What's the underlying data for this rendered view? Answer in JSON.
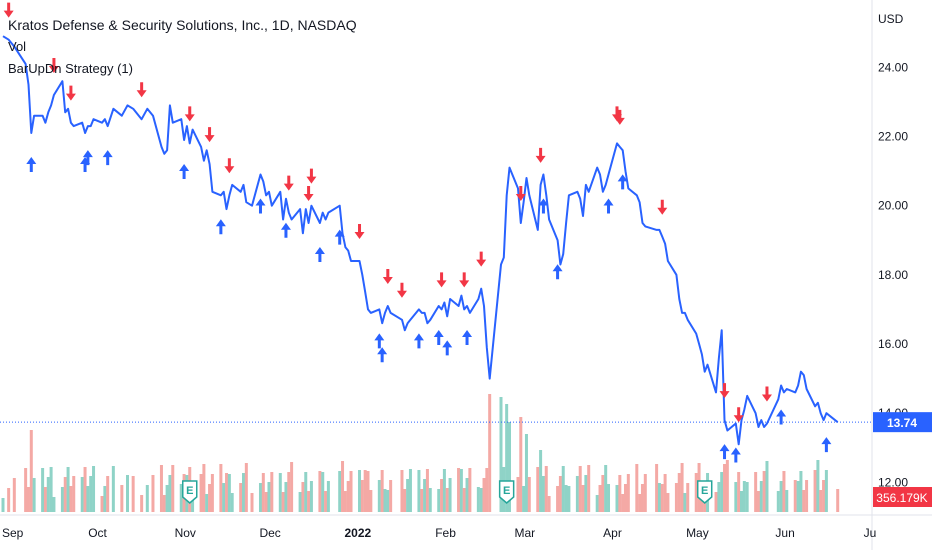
{
  "chart_data": {
    "type": "line",
    "title": "Kratos Defense & Security Solutions, Inc., 1D, NASDAQ",
    "indicators": [
      "Vol",
      "BarUpDn Strategy (1)"
    ],
    "currency_label": "USD",
    "x_ticks": [
      "Sep",
      "Oct",
      "Nov",
      "Dec",
      "2022",
      "Feb",
      "Mar",
      "Apr",
      "May",
      "Jun",
      "Ju"
    ],
    "y_ticks": [
      "24.00",
      "22.00",
      "20.00",
      "18.00",
      "16.00",
      "14.00",
      "12.00"
    ],
    "ylim": [
      11.2,
      25.6
    ],
    "last_price": 13.74,
    "last_price_label": "13.74",
    "volume_label": "356.179K",
    "earnings_marker_label": "E",
    "earnings_dates": [
      "2021-11-04",
      "2022-02-24",
      "2022-05-05"
    ],
    "price_series": {
      "color": "#2962ff",
      "points": [
        [
          "2021-08-30",
          24.9
        ],
        [
          "2021-09-01",
          24.8
        ],
        [
          "2021-09-03",
          24.6
        ],
        [
          "2021-09-07",
          24.1
        ],
        [
          "2021-09-08",
          23.5
        ],
        [
          "2021-09-09",
          22.1
        ],
        [
          "2021-09-10",
          22.6
        ],
        [
          "2021-09-13",
          22.6
        ],
        [
          "2021-09-14",
          22.4
        ],
        [
          "2021-09-15",
          22.7
        ],
        [
          "2021-09-16",
          22.9
        ],
        [
          "2021-09-17",
          23.2
        ],
        [
          "2021-09-20",
          23.6
        ],
        [
          "2021-09-21",
          22.7
        ],
        [
          "2021-09-22",
          22.8
        ],
        [
          "2021-09-23",
          22.4
        ],
        [
          "2021-09-24",
          22.3
        ],
        [
          "2021-09-27",
          22.4
        ],
        [
          "2021-09-28",
          22.1
        ],
        [
          "2021-09-29",
          22.3
        ],
        [
          "2021-09-30",
          22.3
        ],
        [
          "2021-10-01",
          22.5
        ],
        [
          "2021-10-04",
          22.4
        ],
        [
          "2021-10-05",
          22.5
        ],
        [
          "2021-10-06",
          22.3
        ],
        [
          "2021-10-08",
          22.8
        ],
        [
          "2021-10-11",
          22.6
        ],
        [
          "2021-10-13",
          22.9
        ],
        [
          "2021-10-15",
          22.8
        ],
        [
          "2021-10-18",
          22.5
        ],
        [
          "2021-10-20",
          22.8
        ],
        [
          "2021-10-22",
          22.6
        ],
        [
          "2021-10-25",
          21.7
        ],
        [
          "2021-10-26",
          21.5
        ],
        [
          "2021-10-27",
          21.6
        ],
        [
          "2021-10-28",
          22.9
        ],
        [
          "2021-10-29",
          22.4
        ],
        [
          "2021-11-01",
          22.5
        ],
        [
          "2021-11-02",
          21.9
        ],
        [
          "2021-11-03",
          22.3
        ],
        [
          "2021-11-04",
          21.8
        ],
        [
          "2021-11-05",
          22.2
        ],
        [
          "2021-11-08",
          21.7
        ],
        [
          "2021-11-09",
          21.3
        ],
        [
          "2021-11-10",
          21.6
        ],
        [
          "2021-11-11",
          21.2
        ],
        [
          "2021-11-12",
          20.4
        ],
        [
          "2021-11-15",
          20.3
        ],
        [
          "2021-11-16",
          20.4
        ],
        [
          "2021-11-17",
          19.9
        ],
        [
          "2021-11-18",
          20.3
        ],
        [
          "2021-11-19",
          20.6
        ],
        [
          "2021-11-22",
          20.4
        ],
        [
          "2021-11-23",
          20.6
        ],
        [
          "2021-11-24",
          20.1
        ],
        [
          "2021-11-26",
          20.0
        ],
        [
          "2021-11-29",
          20.9
        ],
        [
          "2021-11-30",
          20.7
        ],
        [
          "2021-12-01",
          20.3
        ],
        [
          "2021-12-02",
          20.4
        ],
        [
          "2021-12-03",
          20.0
        ],
        [
          "2021-12-06",
          20.4
        ],
        [
          "2021-12-07",
          19.6
        ],
        [
          "2021-12-08",
          20.2
        ],
        [
          "2021-12-09",
          19.8
        ],
        [
          "2021-12-10",
          19.6
        ],
        [
          "2021-12-13",
          19.9
        ],
        [
          "2021-12-14",
          19.2
        ],
        [
          "2021-12-15",
          19.9
        ],
        [
          "2021-12-16",
          19.5
        ],
        [
          "2021-12-17",
          20.0
        ],
        [
          "2021-12-20",
          19.5
        ],
        [
          "2021-12-21",
          19.8
        ],
        [
          "2021-12-22",
          19.6
        ],
        [
          "2021-12-23",
          19.8
        ],
        [
          "2021-12-27",
          20.0
        ],
        [
          "2021-12-28",
          19.2
        ],
        [
          "2021-12-29",
          18.8
        ],
        [
          "2021-12-30",
          18.7
        ],
        [
          "2021-12-31",
          18.4
        ],
        [
          "2022-01-03",
          18.4
        ],
        [
          "2022-01-04",
          18.0
        ],
        [
          "2022-01-05",
          17.5
        ],
        [
          "2022-01-06",
          17.0
        ],
        [
          "2022-01-07",
          16.9
        ],
        [
          "2022-01-10",
          17.0
        ],
        [
          "2022-01-11",
          16.6
        ],
        [
          "2022-01-12",
          16.9
        ],
        [
          "2022-01-13",
          17.1
        ],
        [
          "2022-01-14",
          16.9
        ],
        [
          "2022-01-18",
          16.7
        ],
        [
          "2022-01-19",
          16.4
        ],
        [
          "2022-01-20",
          16.6
        ],
        [
          "2022-01-21",
          16.7
        ],
        [
          "2022-01-24",
          17.0
        ],
        [
          "2022-01-25",
          16.9
        ],
        [
          "2022-01-26",
          16.9
        ],
        [
          "2022-01-27",
          16.6
        ],
        [
          "2022-01-28",
          16.7
        ],
        [
          "2022-01-31",
          17.1
        ],
        [
          "2022-02-01",
          17.0
        ],
        [
          "2022-02-02",
          17.2
        ],
        [
          "2022-02-03",
          16.8
        ],
        [
          "2022-02-04",
          17.3
        ],
        [
          "2022-02-07",
          17.1
        ],
        [
          "2022-02-08",
          17.4
        ],
        [
          "2022-02-09",
          17.0
        ],
        [
          "2022-02-10",
          17.1
        ],
        [
          "2022-02-11",
          16.9
        ],
        [
          "2022-02-14",
          17.3
        ],
        [
          "2022-02-15",
          17.6
        ],
        [
          "2022-02-16",
          17.1
        ],
        [
          "2022-02-17",
          15.9
        ],
        [
          "2022-02-18",
          15.0
        ],
        [
          "2022-02-22",
          18.3
        ],
        [
          "2022-02-23",
          18.5
        ],
        [
          "2022-02-24",
          20.3
        ],
        [
          "2022-02-25",
          21.1
        ],
        [
          "2022-02-28",
          20.5
        ],
        [
          "2022-03-01",
          19.5
        ],
        [
          "2022-03-02",
          20.1
        ],
        [
          "2022-03-03",
          20.8
        ],
        [
          "2022-03-04",
          20.3
        ],
        [
          "2022-03-07",
          19.3
        ],
        [
          "2022-03-08",
          20.6
        ],
        [
          "2022-03-09",
          20.9
        ],
        [
          "2022-03-10",
          20.3
        ],
        [
          "2022-03-11",
          19.6
        ],
        [
          "2022-03-14",
          19.0
        ],
        [
          "2022-03-15",
          18.3
        ],
        [
          "2022-03-16",
          18.6
        ],
        [
          "2022-03-17",
          19.5
        ],
        [
          "2022-03-18",
          20.3
        ],
        [
          "2022-03-21",
          20.4
        ],
        [
          "2022-03-22",
          20.2
        ],
        [
          "2022-03-23",
          19.7
        ],
        [
          "2022-03-24",
          20.6
        ],
        [
          "2022-03-25",
          20.4
        ],
        [
          "2022-03-28",
          21.1
        ],
        [
          "2022-03-29",
          20.9
        ],
        [
          "2022-03-30",
          20.4
        ],
        [
          "2022-03-31",
          20.6
        ],
        [
          "2022-04-01",
          20.9
        ],
        [
          "2022-04-04",
          21.8
        ],
        [
          "2022-04-05",
          21.7
        ],
        [
          "2022-04-06",
          21.6
        ],
        [
          "2022-04-07",
          21.0
        ],
        [
          "2022-04-08",
          20.5
        ],
        [
          "2022-04-11",
          20.3
        ],
        [
          "2022-04-12",
          20.1
        ],
        [
          "2022-04-13",
          19.5
        ],
        [
          "2022-04-14",
          19.4
        ],
        [
          "2022-04-18",
          19.3
        ],
        [
          "2022-04-19",
          19.3
        ],
        [
          "2022-04-20",
          19.1
        ],
        [
          "2022-04-21",
          18.9
        ],
        [
          "2022-04-22",
          18.4
        ],
        [
          "2022-04-25",
          18.0
        ],
        [
          "2022-04-26",
          17.3
        ],
        [
          "2022-04-27",
          16.9
        ],
        [
          "2022-04-28",
          16.9
        ],
        [
          "2022-04-29",
          16.7
        ],
        [
          "2022-05-02",
          16.3
        ],
        [
          "2022-05-03",
          16.0
        ],
        [
          "2022-05-04",
          15.7
        ],
        [
          "2022-05-05",
          15.2
        ],
        [
          "2022-05-06",
          15.4
        ],
        [
          "2022-05-09",
          14.6
        ],
        [
          "2022-05-10",
          15.6
        ],
        [
          "2022-05-11",
          16.4
        ],
        [
          "2022-05-12",
          13.8
        ],
        [
          "2022-05-13",
          13.5
        ],
        [
          "2022-05-16",
          13.7
        ],
        [
          "2022-05-17",
          13.1
        ],
        [
          "2022-05-18",
          13.8
        ],
        [
          "2022-05-19",
          14.1
        ],
        [
          "2022-05-20",
          14.5
        ],
        [
          "2022-05-23",
          14.0
        ],
        [
          "2022-05-24",
          13.6
        ],
        [
          "2022-05-25",
          13.8
        ],
        [
          "2022-05-26",
          13.6
        ],
        [
          "2022-05-27",
          13.7
        ],
        [
          "2022-05-31",
          14.4
        ],
        [
          "2022-06-01",
          14.8
        ],
        [
          "2022-06-02",
          14.6
        ],
        [
          "2022-06-03",
          14.7
        ],
        [
          "2022-06-06",
          14.6
        ],
        [
          "2022-06-07",
          14.8
        ],
        [
          "2022-06-08",
          15.2
        ],
        [
          "2022-06-09",
          15.1
        ],
        [
          "2022-06-10",
          14.7
        ],
        [
          "2022-06-13",
          14.2
        ],
        [
          "2022-06-14",
          14.3
        ],
        [
          "2022-06-15",
          14.0
        ],
        [
          "2022-06-16",
          13.8
        ],
        [
          "2022-06-17",
          14.0
        ],
        [
          "2022-06-21",
          13.74
        ]
      ]
    },
    "buy_signals": [
      "2021-09-09",
      "2021-09-28",
      "2021-09-29",
      "2021-10-06",
      "2021-11-02",
      "2021-11-15",
      "2021-11-29",
      "2021-12-08",
      "2021-12-20",
      "2021-12-27",
      "2022-01-10",
      "2022-01-11",
      "2022-01-24",
      "2022-01-31",
      "2022-02-03",
      "2022-02-10",
      "2022-03-09",
      "2022-03-14",
      "2022-04-01",
      "2022-04-06",
      "2022-05-12",
      "2022-05-16",
      "2022-06-01",
      "2022-06-17"
    ],
    "sell_signals": [
      "2021-09-01",
      "2021-09-17",
      "2021-09-23",
      "2021-10-18",
      "2021-11-04",
      "2021-11-11",
      "2021-11-18",
      "2021-12-09",
      "2021-12-16",
      "2021-12-17",
      "2022-01-03",
      "2022-01-13",
      "2022-01-18",
      "2022-02-01",
      "2022-02-09",
      "2022-02-15",
      "2022-03-01",
      "2022-03-08",
      "2022-04-04",
      "2022-04-05",
      "2022-04-20",
      "2022-05-12",
      "2022-05-17",
      "2022-05-27"
    ]
  }
}
